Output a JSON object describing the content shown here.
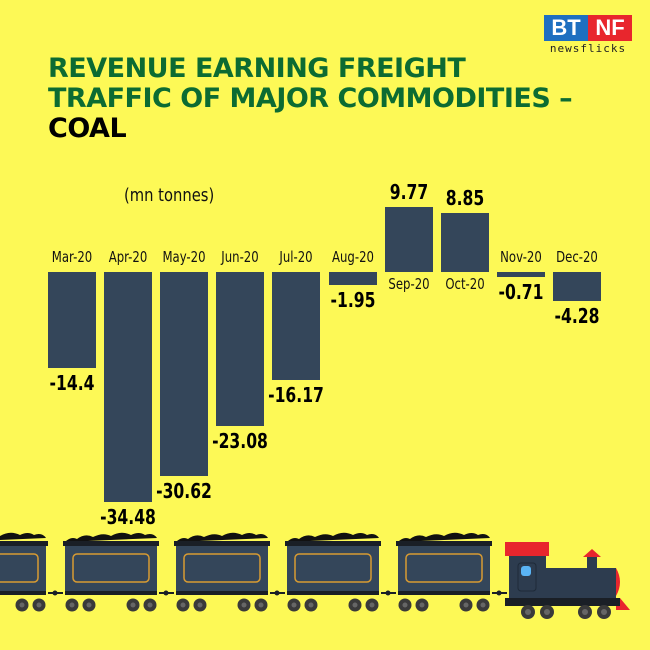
{
  "brand": {
    "top_left": "BT",
    "top_right": "NF",
    "subtitle": "newsflicks",
    "colors": {
      "bt": "#1e6fc0",
      "nf": "#e8262d"
    }
  },
  "title": {
    "line1": "REVENUE EARNING FREIGHT",
    "line2": "TRAFFIC OF MAJOR COMMODITIES –",
    "line3": "COAL",
    "color_primary": "#0c6b32",
    "color_secondary": "#000000"
  },
  "unit_label": "(mn tonnes)",
  "colors": {
    "background": "#fdf956",
    "bar": "#34465a"
  },
  "chart_data": {
    "type": "bar",
    "title": "Revenue Earning Freight Traffic of Major Commodities – Coal",
    "ylabel": "(mn tonnes)",
    "xlabel": "",
    "categories": [
      "Mar-20",
      "Apr-20",
      "May-20",
      "Jun-20",
      "Jul-20",
      "Aug-20",
      "Sep-20",
      "Oct-20",
      "Nov-20",
      "Dec-20"
    ],
    "values": [
      -14.4,
      -34.48,
      -30.62,
      -23.08,
      -16.17,
      -1.95,
      9.77,
      8.85,
      -0.71,
      -4.28
    ],
    "value_labels": [
      "-14.4",
      "-34.48",
      "-30.62",
      "-23.08",
      "-16.17",
      "-1.95",
      "9.77",
      "8.85",
      "-0.71",
      "-4.28"
    ],
    "grid": false,
    "legend": null
  }
}
